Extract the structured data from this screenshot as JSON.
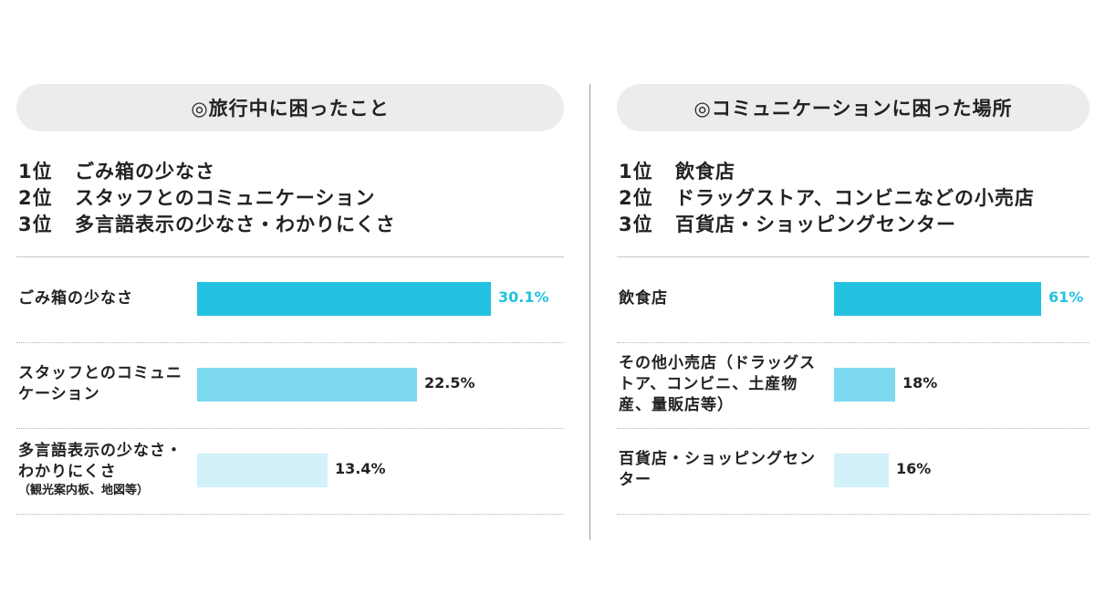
{
  "left": {
    "title": "◎旅行中に困ったこと",
    "ranking": [
      {
        "pos": "1位",
        "text": "ごみ箱の少なさ"
      },
      {
        "pos": "2位",
        "text": "スタッフとのコミュニケーション"
      },
      {
        "pos": "3位",
        "text": "多言語表示の少なさ・わかりにくさ"
      }
    ]
  },
  "right": {
    "title": "◎コミュニケーションに困った場所",
    "ranking": [
      {
        "pos": "1位",
        "text": "飲食店"
      },
      {
        "pos": "2位",
        "text": "ドラッグストア、コンビニなどの小売店"
      },
      {
        "pos": "3位",
        "text": "百貨店・ショッピングセンター"
      }
    ]
  },
  "chart_data": [
    {
      "type": "bar",
      "orientation": "horizontal",
      "categories": [
        "ごみ箱の少なさ",
        "スタッフとのコミュニケーション",
        "多言語表示の少なさ・わかりにくさ"
      ],
      "category_notes": [
        "",
        "",
        "（観光案内板、地図等）"
      ],
      "values": [
        30.1,
        22.5,
        13.4
      ],
      "value_labels": [
        "30.1%",
        "22.5%",
        "13.4%"
      ],
      "colors": [
        "#24c2e0",
        "#7dd9ef",
        "#d2f1f9"
      ],
      "highlight_color": "#24c2e0",
      "xlim": [
        0,
        30.1
      ]
    },
    {
      "type": "bar",
      "orientation": "horizontal",
      "categories": [
        "飲食店",
        "その他小売店（ドラッグストア、コンビニ、土産物産、量販店等）",
        "百貨店・ショッピングセンター"
      ],
      "category_notes": [
        "",
        "",
        ""
      ],
      "values": [
        61,
        18,
        16
      ],
      "value_labels": [
        "61%",
        "18%",
        "16%"
      ],
      "colors": [
        "#24c2e0",
        "#7dd9ef",
        "#d2f1f9"
      ],
      "highlight_color": "#24c2e0",
      "xlim": [
        0,
        61
      ]
    }
  ]
}
